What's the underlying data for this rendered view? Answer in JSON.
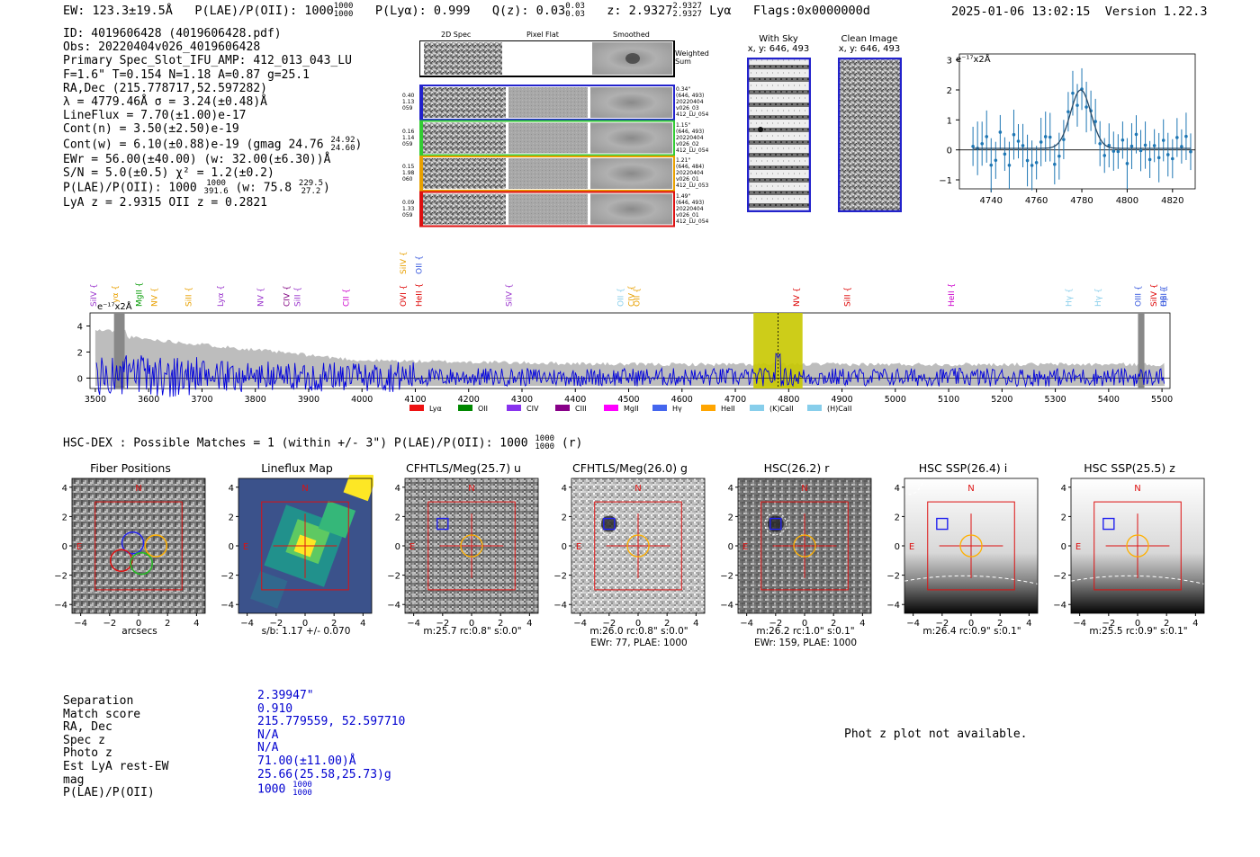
{
  "header": {
    "ew": "EW: 123.3±19.5Å",
    "plae_label": "P(LAE)/P(OII):",
    "plae_value": "1000",
    "plae_hi": "1000",
    "plae_lo": "1000",
    "plya": "P(Lyα): 0.999",
    "qz_label": "Q(z): 0.03",
    "qz_hi": "0.03",
    "qz_lo": "0.03",
    "z_label": "z: 2.9327",
    "z_hi": "2.9327",
    "z_lo": "2.9327",
    "z_line": "Lyα",
    "flags": "Flags:0x0000000d",
    "timestamp": "2025-01-06 13:02:15",
    "version": "Version 1.22.3"
  },
  "info": {
    "id": "ID: 4019606428 (4019606428.pdf)",
    "obs": "Obs: 20220404v026_4019606428",
    "primary": "Primary Spec_Slot_IFU_AMP: 412_013_043_LU",
    "fit": "F=1.6\"  T=0.154  N=1.18  A=0.87  g=25.1",
    "radec": "RA,Dec (215.778717,52.597282)",
    "lambda": "λ = 4779.46Å  σ = 3.24(±0.48)Å",
    "lineflux": "LineFlux = 7.70(±1.00)e-17",
    "contn": "Cont(n) = 3.50(±2.50)e-19",
    "contw": "Cont(w) = 6.10(±0.88)e-19 (gmag 24.76",
    "contw_hi": "24.92",
    "contw_lo": "24.60",
    "contw_end": ")",
    "ewr": "EWr = 56.00(±40.00) (w: 32.00(±6.30))Å",
    "sn": "S/N = 5.0(±0.5)  χ² = 1.2(±0.2)",
    "plae": "P(LAE)/P(OII): 1000",
    "plae_hi": "1000",
    "plae_lo": "391.6",
    "plae_w": "(w: 75.8",
    "plae_w_hi": "229.5",
    "plae_w_lo": "27.2",
    "plae_w_end": ")",
    "z": "LyA z = 2.9315   OII z = 0.2821"
  },
  "cutouts": {
    "col_2d": "2D Spec",
    "col_flat": "Pixel Flat",
    "col_smooth": "Smoothed",
    "weighted_sum": "Weighted Sum",
    "rows": [
      {
        "left": [
          "0.40",
          "1.13",
          "059"
        ],
        "right": [
          "0.34\"",
          "(646, 493)",
          "20220404",
          "v026_03",
          "412_LU_054"
        ],
        "color": "#2222cc"
      },
      {
        "left": [
          "0.16",
          "1.14",
          "059"
        ],
        "right": [
          "1.15\"",
          "(646, 493)",
          "20220404",
          "v026_02",
          "412_LU_054"
        ],
        "color": "#33cc33"
      },
      {
        "left": [
          "0.15",
          "1.98",
          "060"
        ],
        "right": [
          "1.21\"",
          "(646, 484)",
          "20220404",
          "v026_01",
          "412_LU_053"
        ],
        "color": "#e8a000"
      },
      {
        "left": [
          "0.09",
          "1.33",
          "059"
        ],
        "right": [
          "1.49\"",
          "(646, 493)",
          "20220404",
          "v026_01",
          "412_LU_054"
        ],
        "color": "#dd1111"
      }
    ]
  },
  "sky": {
    "with_sky": "With Sky",
    "with_sky_xy": "x, y: 646, 493",
    "clean": "Clean Image",
    "clean_xy": "x, y: 646, 493"
  },
  "line_plot": {
    "unit": "e⁻¹⁷x2Å",
    "y_ticks": [
      "3",
      "2",
      "1",
      "0",
      "−1"
    ],
    "x_ticks": [
      "4740",
      "4760",
      "4780",
      "4800",
      "4820"
    ]
  },
  "spectrum": {
    "unit": "e⁻¹⁷x2Å",
    "y_ticks": [
      "4",
      "2",
      "0"
    ],
    "x_ticks": [
      "3500",
      "3600",
      "3700",
      "3800",
      "3900",
      "4000",
      "4100",
      "4200",
      "4300",
      "4400",
      "4500",
      "4600",
      "4700",
      "4800",
      "4900",
      "5000",
      "5100",
      "5200",
      "5300",
      "5400",
      "5500"
    ],
    "line_labels": [
      {
        "t": "SiIV",
        "c": "#9933cc"
      },
      {
        "t": "Lyα",
        "c": "#e8a000"
      },
      {
        "t": "MgII",
        "c": "#009900"
      },
      {
        "t": "NV",
        "c": "#e8a000"
      },
      {
        "t": "SiII",
        "c": "#e8a000"
      },
      {
        "t": "Lyα",
        "c": "#9933cc"
      },
      {
        "t": "NV",
        "c": "#9933cc"
      },
      {
        "t": "CIV",
        "c": "#800080"
      },
      {
        "t": "SiII",
        "c": "#9933cc"
      },
      {
        "t": "CII",
        "c": "#cc00cc"
      },
      {
        "t": "OVI",
        "c": "#dd0000"
      },
      {
        "t": "HeII",
        "c": "#dd0000"
      },
      {
        "t": "SiIV",
        "c": "#e8a000"
      },
      {
        "t": "OII",
        "c": "#3355dd"
      },
      {
        "t": "SiIV",
        "c": "#9933cc"
      },
      {
        "t": "OII",
        "c": "#87ceeb"
      },
      {
        "t": "CIV",
        "c": "#e8a000"
      },
      {
        "t": "OII",
        "c": "#e8a000"
      },
      {
        "t": "NV",
        "c": "#dd0000"
      },
      {
        "t": "SiII",
        "c": "#dd0000"
      },
      {
        "t": "HeII",
        "c": "#cc00cc"
      },
      {
        "t": "Hγ",
        "c": "#87ceeb"
      },
      {
        "t": "Hγ",
        "c": "#87ceeb"
      },
      {
        "t": "Hβ",
        "c": "#3355dd"
      },
      {
        "t": "OIII",
        "c": "#3355dd"
      },
      {
        "t": "SiIV",
        "c": "#dd0000"
      },
      {
        "t": "OIII",
        "c": "#3355dd"
      }
    ],
    "legend": [
      {
        "t": "Lyα",
        "c": "#ee1111"
      },
      {
        "t": "OII",
        "c": "#008800"
      },
      {
        "t": "CIV",
        "c": "#8833ee"
      },
      {
        "t": "CIII",
        "c": "#880088"
      },
      {
        "t": "MgII",
        "c": "#ff00ff"
      },
      {
        "t": "Hγ",
        "c": "#4466ee"
      },
      {
        "t": "HeII",
        "c": "#ffa500"
      },
      {
        "t": "(K)CaII",
        "c": "#87ceeb"
      },
      {
        "t": "(H)CaII",
        "c": "#87ceeb"
      }
    ]
  },
  "matches": {
    "line": "HSC-DEX : Possible Matches = 1 (within +/- 3\")  P(LAE)/P(OII): 1000",
    "hi": "1000",
    "lo": "1000",
    "end": "(r)"
  },
  "panels": [
    {
      "title": "Fiber Positions",
      "caption": "arcsecs",
      "caption2": ""
    },
    {
      "title": "Lineflux Map",
      "caption": "s/b: 1.17 +/- 0.070",
      "caption2": ""
    },
    {
      "title": "CFHTLS/Meg(25.7) u",
      "caption": "m:25.7 rc:0.8\"  s:0.0\"",
      "caption2": ""
    },
    {
      "title": "CFHTLS/Meg(26.0) g",
      "caption": "m:26.0 rc:0.8\"  s:0.0\"",
      "caption2": "EWr: 77, PLAE: 1000"
    },
    {
      "title": "HSC(26.2) r",
      "caption": "m:26.2 rc:1.0\"  s:0.1\"",
      "caption2": "EWr: 159, PLAE: 1000"
    },
    {
      "title": "HSC SSP(26.4) i",
      "caption": "m:26.4 rc:0.9\"  s:0.1\"",
      "caption2": ""
    },
    {
      "title": "HSC SSP(25.5) z",
      "caption": "m:25.5 rc:0.9\"  s:0.1\"",
      "caption2": ""
    }
  ],
  "panel_ticks": {
    "y": [
      "4",
      "2",
      "0",
      "−2",
      "−4"
    ],
    "x": [
      "−4",
      "−2",
      "0",
      "2",
      "4"
    ],
    "north": "N",
    "east": "E"
  },
  "table": {
    "labels": [
      "Separation",
      "Match score",
      "RA, Dec",
      "Spec z",
      "Photo z",
      "Est LyA rest-EW",
      "mag",
      "P(LAE)/P(OII)"
    ],
    "values": [
      "2.39947\"",
      "0.910",
      "215.779559, 52.597710",
      "N/A",
      "N/A",
      "71.00(±11.00)Å",
      "25.66(25.58,25.73)g",
      "1000"
    ],
    "plae_hi": "1000",
    "plae_lo": "1000"
  },
  "photz_note": "Phot z plot not available."
}
